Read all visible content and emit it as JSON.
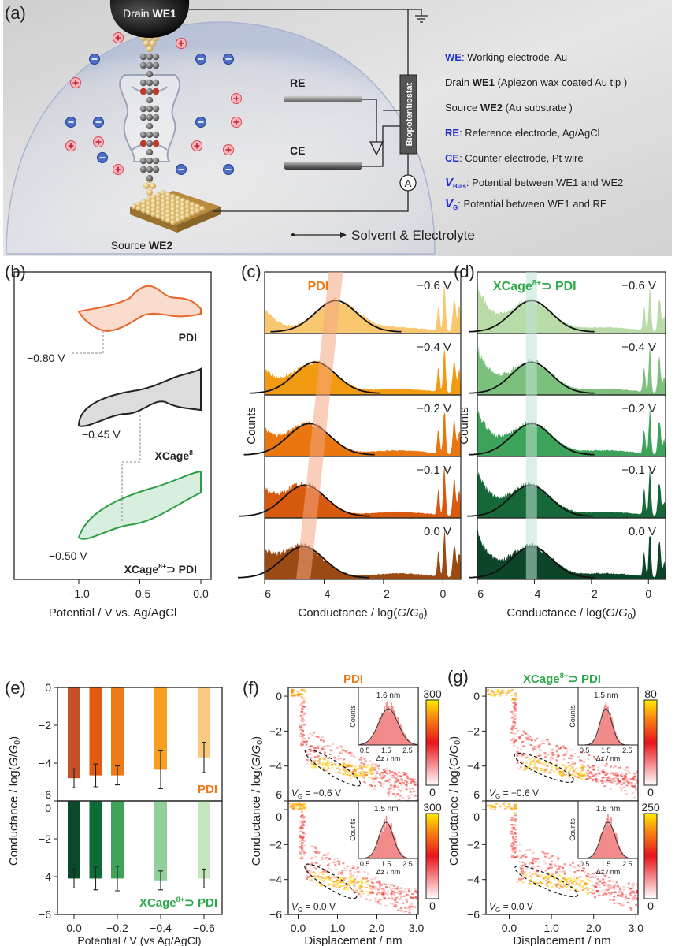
{
  "panel_labels": {
    "a": "(a)",
    "b": "(b)",
    "c": "(c)",
    "d": "(d)",
    "e": "(e)",
    "f": "(f)",
    "g": "(g)"
  },
  "a": {
    "drain_prefix": "Drain ",
    "drain_bold": "WE1",
    "source_prefix": "Source ",
    "source_bold": "WE2",
    "re": "RE",
    "ce": "CE",
    "potentiostat": "Biopotentiostat",
    "ammeter": "A",
    "solvent": "Solvent & Electrolyte",
    "legend": [
      {
        "pre": "",
        "key": "WE",
        "sub": "",
        "text": ": Working electrode, Au",
        "blue": true
      },
      {
        "pre": "Drain ",
        "key": "WE1",
        "sub": "",
        "text": " (Apiezon wax coated Au tip )",
        "blue": false
      },
      {
        "pre": "Source ",
        "key": "WE2",
        "sub": "",
        "text": " (Au substrate )",
        "blue": false
      },
      {
        "pre": "",
        "key": "RE",
        "sub": "",
        "text": ": Reference electrode, Ag/AgCl",
        "blue": true
      },
      {
        "pre": "",
        "key": "CE",
        "sub": "",
        "text": ": Counter electrode, Pt wire",
        "blue": true
      },
      {
        "pre": "",
        "key": "V",
        "sub": "Bias",
        "text": ": Potential  between WE1 and WE2",
        "blue": true
      },
      {
        "pre": "",
        "key": "V",
        "sub": "G",
        "text": ": Potential  between WE1 and RE",
        "blue": true
      }
    ],
    "colors": {
      "key_blue": "#1f2fd6",
      "gold": "#d9b566",
      "background": "#dedede"
    }
  },
  "b": {
    "curves": [
      {
        "name": "PDI",
        "label_main": "PDI",
        "label_sup": "",
        "label_tail": "",
        "potential": "−0.80 V",
        "color": "#e8662a",
        "fill": "#f9dccd"
      },
      {
        "name": "XCage",
        "label_main": "XCage",
        "label_sup": "8+",
        "label_tail": "",
        "potential": "−0.45 V",
        "color": "#222222",
        "fill": "#dcdcdc"
      },
      {
        "name": "XCage-PDI",
        "label_main": "XCage",
        "label_sup": "8+",
        "label_tail": "⊃ PDI",
        "potential": "−0.50 V",
        "color": "#2e9e46",
        "fill": "#d8eedf"
      }
    ],
    "xticks": [
      "−1.0",
      "−0.5",
      "0.0"
    ],
    "xlabel": "Potential / V vs. Ag/AgCl"
  },
  "chart_data": [
    {
      "panel": "c",
      "type": "area",
      "title": "PDI",
      "ylabel": "Counts",
      "xlabel": {
        "pre": "Conductance / log(",
        "g1": "G",
        "slash": "/",
        "g2": "G",
        "sub": "0",
        "post": ")"
      },
      "xticks": [
        "−6",
        "−4",
        "−2",
        "0"
      ],
      "xlim": [
        -6,
        0.6
      ],
      "rows": [
        {
          "label": "−0.6 V",
          "peak": -3.6,
          "color": "#f8c770"
        },
        {
          "label": "−0.4 V",
          "peak": -4.3,
          "color": "#f29b12"
        },
        {
          "label": "−0.2 V",
          "peak": -4.5,
          "color": "#ea7610"
        },
        {
          "label": "−0.1 V",
          "peak": -4.65,
          "color": "#d75a0e"
        },
        {
          "label": "0.0 V",
          "peak": -4.7,
          "color": "#9a4a12"
        }
      ]
    },
    {
      "panel": "d",
      "type": "area",
      "title_main": "XCage",
      "title_sup": "8+",
      "title_tail": "⊃ PDI",
      "ylabel": "Counts",
      "xlabel": {
        "pre": "Conductance / log(",
        "g1": "G",
        "slash": "/",
        "g2": "G",
        "sub": "0",
        "post": ")"
      },
      "xticks": [
        "−6",
        "−4",
        "−2",
        "0"
      ],
      "xlim": [
        -6,
        0.6
      ],
      "rows": [
        {
          "label": "−0.6 V",
          "peak": -4.1,
          "color": "#b8dba8"
        },
        {
          "label": "−0.4 V",
          "peak": -4.1,
          "color": "#7cc07e"
        },
        {
          "label": "−0.2 V",
          "peak": -4.1,
          "color": "#3ea35a"
        },
        {
          "label": "−0.1 V",
          "peak": -4.15,
          "color": "#16673a"
        },
        {
          "label": "0.0 V",
          "peak": -4.1,
          "color": "#0c4528"
        }
      ]
    },
    {
      "panel": "e",
      "type": "bar",
      "ylabel": {
        "pre": "Conductance / log(",
        "g1": "G",
        "slash": "/",
        "g2": "G",
        "sub": "0",
        "post": ")"
      },
      "xlabel": "Potential / V (vs Ag/AgCl)",
      "x": [
        0.0,
        -0.1,
        -0.2,
        -0.4,
        -0.6
      ],
      "xticks": [
        "0.0",
        "−0.2",
        "−0.4",
        "−0.6"
      ],
      "yticks": [
        "0",
        "−2",
        "−4",
        "−6"
      ],
      "ylim": [
        -6,
        0
      ],
      "series": [
        {
          "name": "PDI",
          "values": [
            -4.8,
            -4.65,
            -4.65,
            -4.35,
            -3.7
          ],
          "errors": [
            0.5,
            0.6,
            0.5,
            1.0,
            0.8
          ],
          "colors": [
            "#c4502a",
            "#e35a10",
            "#ee7a1a",
            "#f7a020",
            "#fbc97e"
          ],
          "label_color": "#ee7a1a"
        },
        {
          "name_main": "XCage",
          "name_sup": "8+",
          "name_tail": "⊃ PDI",
          "values": [
            -4.1,
            -4.1,
            -4.1,
            -4.2,
            -4.1
          ],
          "errors": [
            0.5,
            0.6,
            0.65,
            0.5,
            0.5
          ],
          "colors": [
            "#0a4a2a",
            "#0d6b36",
            "#3fa35a",
            "#93cf9a",
            "#c6e6bd"
          ],
          "label_color": "#2ea84a"
        }
      ]
    },
    {
      "panel": "f",
      "type": "heatmap",
      "title": "PDI",
      "title_color": "#ee7a1a",
      "ylabel": {
        "pre": "Conductance / log(",
        "g1": "G",
        "slash": "/",
        "g2": "G",
        "sub": "0",
        "post": ")"
      },
      "xlabel": "Displacement / nm",
      "xticks": [
        "0.0",
        "1.0",
        "2.0",
        "3.0"
      ],
      "yticks": [
        "0",
        "−2",
        "−4",
        "−6"
      ],
      "xlim": [
        -0.25,
        3.05
      ],
      "ylim": [
        -6,
        0.5
      ],
      "subplots": [
        {
          "vg_key": "V",
          "vg_sub": "G",
          "vg_text": " = −0.6 V",
          "peak_label": "1.6 nm",
          "peak": 1.6,
          "cbar_max": "300",
          "cbar_min": "0"
        },
        {
          "vg_key": "V",
          "vg_sub": "G",
          "vg_text": " = 0.0 V",
          "peak_label": "1.5 nm",
          "peak": 1.5,
          "cbar_max": "300",
          "cbar_min": "0"
        }
      ],
      "inset": {
        "ylabel": "Counts",
        "xlabel": "Δz / nm",
        "xticks": [
          "0.5",
          "1.5",
          "2.5"
        ]
      }
    },
    {
      "panel": "g",
      "type": "heatmap",
      "title_main": "XCage",
      "title_sup": "8+",
      "title_tail": "⊃ PDI",
      "title_color": "#2ea84a",
      "ylabel": {
        "pre": "Conductance / log(",
        "g1": "G",
        "slash": "/",
        "g2": "G",
        "sub": "0",
        "post": ")"
      },
      "xlabel": "Displacement / nm",
      "xticks": [
        "0.0",
        "1.0",
        "2.0",
        "3.0"
      ],
      "yticks": [
        "0",
        "−2",
        "−4",
        "−6"
      ],
      "xlim": [
        -0.55,
        3.05
      ],
      "ylim": [
        -6,
        0.5
      ],
      "subplots": [
        {
          "vg_key": "V",
          "vg_sub": "G",
          "vg_text": " = −0.6 V",
          "peak_label": "1.5 nm",
          "peak": 1.5,
          "cbar_max": "80",
          "cbar_min": "0"
        },
        {
          "vg_key": "V",
          "vg_sub": "G",
          "vg_text": " = 0.0 V",
          "peak_label": "1.6 nm",
          "peak": 1.6,
          "cbar_max": "250",
          "cbar_min": "0"
        }
      ],
      "inset": {
        "ylabel": "Counts",
        "xlabel": "Δz / nm",
        "xticks": [
          "0.5",
          "1.5",
          "2.5"
        ]
      }
    }
  ]
}
